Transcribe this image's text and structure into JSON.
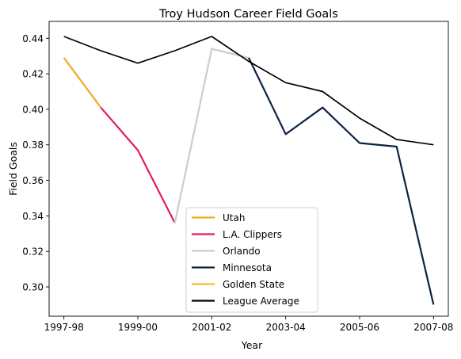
{
  "chart_data": {
    "type": "line",
    "title": "Troy Hudson Career Field Goals",
    "xlabel": "Year",
    "ylabel": "Field Goals",
    "x_tick_labels": [
      "1997-98",
      "1999-00",
      "2001-02",
      "2003-04",
      "2005-06",
      "2007-08"
    ],
    "y_ticks": [
      0.3,
      0.32,
      0.34,
      0.36,
      0.38,
      0.4,
      0.42,
      0.44
    ],
    "y_tick_labels": [
      "0.30",
      "0.32",
      "0.34",
      "0.36",
      "0.38",
      "0.40",
      "0.42",
      "0.44"
    ],
    "xlim": [
      1997.6,
      2008.4
    ],
    "ylim": [
      0.2835,
      0.4495
    ],
    "grid": false,
    "legend_position": "lower-center",
    "series": [
      {
        "name": "Utah",
        "color": "#f5a623",
        "x": [
          1998,
          1999
        ],
        "values": [
          0.429,
          0.401
        ]
      },
      {
        "name": "L.A. Clippers",
        "color": "#e31e54",
        "x": [
          1999,
          2000,
          2001
        ],
        "values": [
          0.401,
          0.377,
          0.336
        ]
      },
      {
        "name": "Orlando",
        "color": "#c4ced4",
        "x": [
          2001,
          2002,
          2003
        ],
        "values": [
          0.336,
          0.434,
          0.429
        ]
      },
      {
        "name": "Minnesota",
        "color": "#0c2340",
        "x": [
          2003,
          2004,
          2005,
          2006,
          2007,
          2008
        ],
        "values": [
          0.429,
          0.386,
          0.401,
          0.381,
          0.379,
          0.29
        ]
      },
      {
        "name": "Golden State",
        "color": "#fdb927",
        "x": [],
        "values": []
      },
      {
        "name": "League Average",
        "color": "#000000",
        "x": [
          1998,
          1999,
          2000,
          2001,
          2002,
          2003,
          2004,
          2005,
          2006,
          2007,
          2008
        ],
        "values": [
          0.441,
          0.433,
          0.426,
          0.433,
          0.441,
          0.427,
          0.415,
          0.41,
          0.395,
          0.383,
          0.38
        ]
      }
    ]
  }
}
